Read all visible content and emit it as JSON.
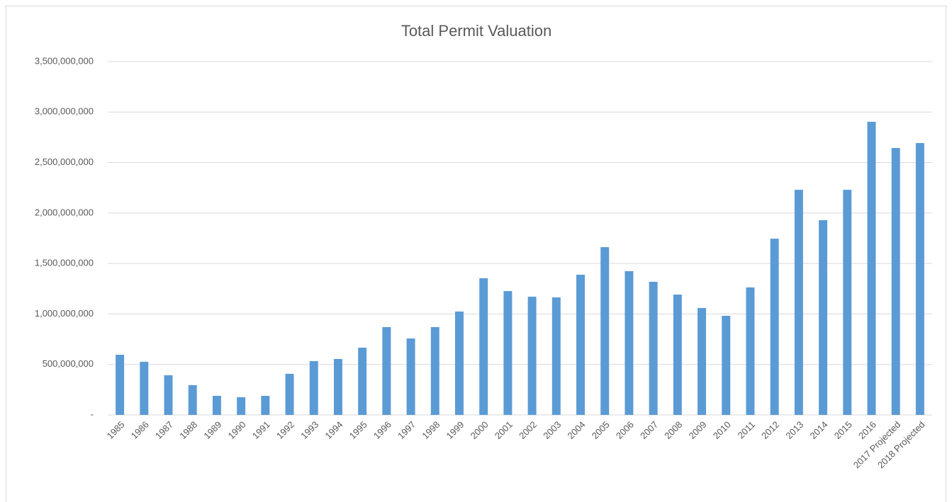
{
  "chart_data": {
    "type": "bar",
    "title": "Total Permit Valuation",
    "categories": [
      "1985",
      "1986",
      "1987",
      "1988",
      "1989",
      "1990",
      "1991",
      "1992",
      "1993",
      "1994",
      "1995",
      "1996",
      "1997",
      "1998",
      "1999",
      "2000",
      "2001",
      "2002",
      "2003",
      "2004",
      "2005",
      "2006",
      "2007",
      "2008",
      "2009",
      "2010",
      "2011",
      "2012",
      "2013",
      "2014",
      "2015",
      "2016",
      "2017 Projected",
      "2018 Projected"
    ],
    "values": [
      596000000,
      526000000,
      393000000,
      295000000,
      189000000,
      175000000,
      189000000,
      407000000,
      533000000,
      554000000,
      666000000,
      870000000,
      757000000,
      870000000,
      1024000000,
      1354000000,
      1227000000,
      1171000000,
      1164000000,
      1389000000,
      1662000000,
      1424000000,
      1319000000,
      1192000000,
      1059000000,
      982000000,
      1263000000,
      1746000000,
      2230000000,
      1929000000,
      2230000000,
      2904000000,
      2644000000,
      2693000000
    ],
    "color": "#5b9bd5",
    "ylim": [
      0,
      3500000000
    ],
    "yticks": [
      {
        "value": 0,
        "label": "-"
      },
      {
        "value": 500000000,
        "label": "500,000,000"
      },
      {
        "value": 1000000000,
        "label": "1,000,000,000"
      },
      {
        "value": 1500000000,
        "label": "1,500,000,000"
      },
      {
        "value": 2000000000,
        "label": "2,000,000,000"
      },
      {
        "value": 2500000000,
        "label": "2,500,000,000"
      },
      {
        "value": 3000000000,
        "label": "3,000,000,000"
      },
      {
        "value": 3500000000,
        "label": "3,500,000,000"
      }
    ],
    "grid": true
  }
}
